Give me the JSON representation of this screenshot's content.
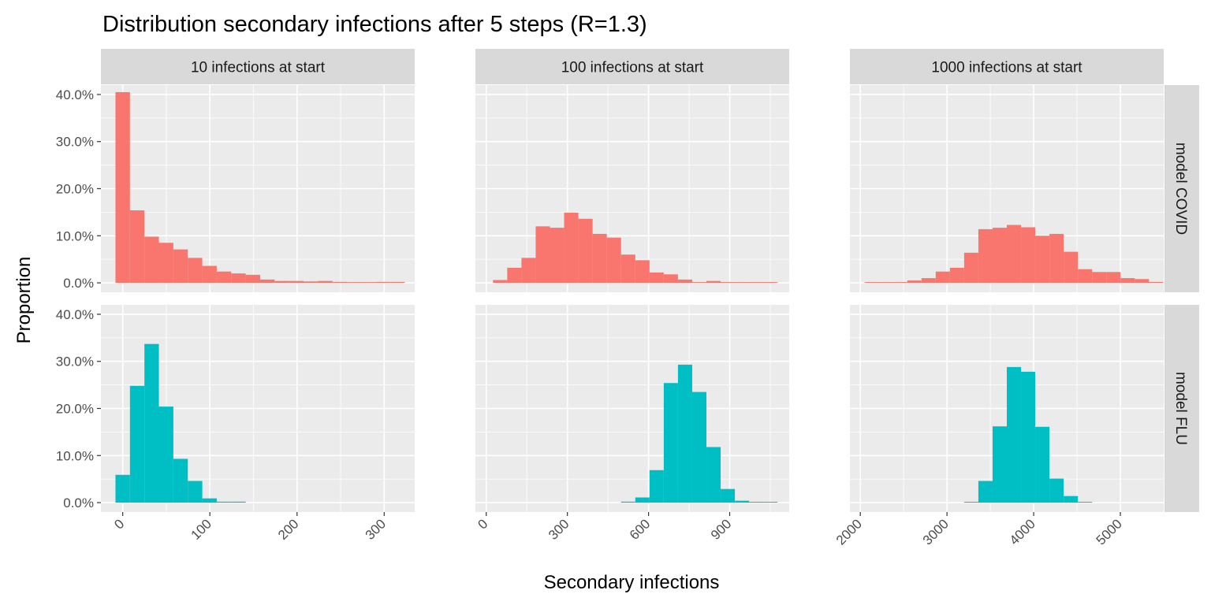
{
  "chart_data": {
    "type": "bar",
    "title": "Distribution secondary infections after 5 steps (R=1.3)",
    "xlabel": "Secondary infections",
    "ylabel": "Proportion",
    "ylim": [
      -0.02,
      0.42
    ],
    "y_ticks": [
      0,
      0.1,
      0.2,
      0.3,
      0.4
    ],
    "y_tick_labels": [
      "0.0%",
      "10.0%",
      "20.0%",
      "30.0%",
      "40.0%"
    ],
    "colors": {
      "model COVID": "#F8766D",
      "model FLU": "#00BFC4"
    },
    "columns": [
      {
        "label": "10 infections at start",
        "xlim": [
          -25,
          335
        ],
        "x_ticks": [
          0,
          100,
          200,
          300
        ],
        "x_tick_labels": [
          "0",
          "100",
          "200",
          "300"
        ],
        "bin_start": -8.3,
        "bin_width": 16.6
      },
      {
        "label": "100 infections at start",
        "xlim": [
          -40,
          1120
        ],
        "x_ticks": [
          0,
          300,
          600,
          900
        ],
        "x_tick_labels": [
          "0",
          "300",
          "600",
          "900"
        ],
        "bin_start": 25,
        "bin_width": 52.6
      },
      {
        "label": "1000 infections at start",
        "xlim": [
          1880,
          5500
        ],
        "x_ticks": [
          2000,
          3000,
          4000,
          5000
        ],
        "x_tick_labels": [
          "2000",
          "3000",
          "4000",
          "5000"
        ],
        "bin_start": 2050,
        "bin_width": 164
      }
    ],
    "rows": [
      {
        "label": "model COVID",
        "series": [
          [
            0.405,
            0.154,
            0.098,
            0.085,
            0.071,
            0.053,
            0.036,
            0.024,
            0.02,
            0.017,
            0.007,
            0.004,
            0.004,
            0.003,
            0.004,
            0.002,
            0.001,
            0.0005,
            0.002,
            0.002
          ],
          [
            0.006,
            0.032,
            0.053,
            0.12,
            0.117,
            0.149,
            0.136,
            0.104,
            0.096,
            0.06,
            0.048,
            0.022,
            0.018,
            0.007,
            0.001,
            0.004,
            0.0005,
            0.001,
            0.001,
            0.001
          ],
          [
            0.0005,
            0.0005,
            0.0005,
            0.005,
            0.01,
            0.024,
            0.032,
            0.064,
            0.114,
            0.117,
            0.123,
            0.118,
            0.1,
            0.104,
            0.066,
            0.029,
            0.023,
            0.023,
            0.01,
            0.008,
            0.002
          ]
        ]
      },
      {
        "label": "model FLU",
        "series": [
          [
            0.059,
            0.248,
            0.337,
            0.204,
            0.093,
            0.046,
            0.009,
            0.002,
            0.002
          ],
          [
            0,
            0,
            0,
            0,
            0,
            0,
            0,
            0,
            0,
            0.002,
            0.011,
            0.069,
            0.254,
            0.293,
            0.235,
            0.118,
            0.029,
            0.004,
            0.001,
            0.001
          ],
          [
            0,
            0,
            0,
            0,
            0,
            0,
            0,
            0.001,
            0.046,
            0.162,
            0.288,
            0.278,
            0.161,
            0.051,
            0.014,
            0.001
          ]
        ]
      }
    ]
  }
}
